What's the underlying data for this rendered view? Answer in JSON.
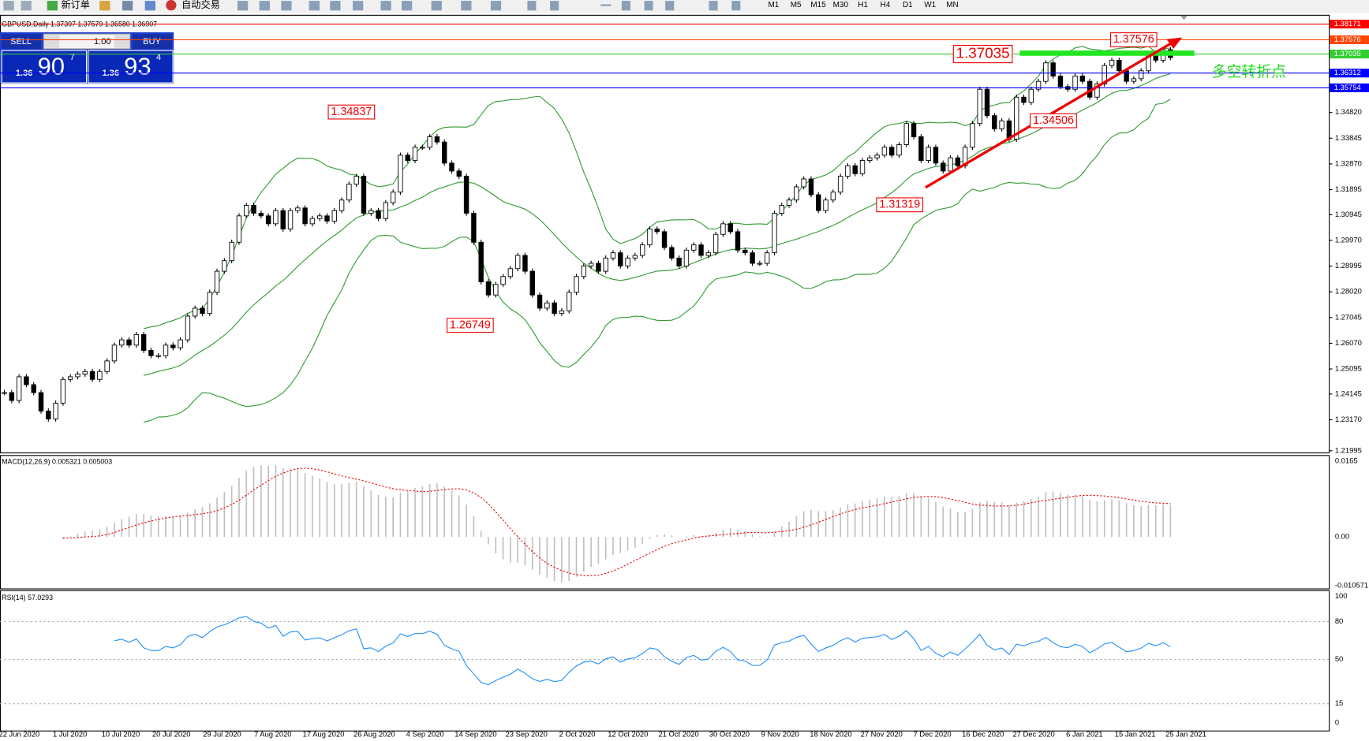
{
  "toolbar": {
    "new_order": "新订单",
    "auto_trading": "自动交易",
    "timeframes": [
      "M1",
      "M5",
      "M15",
      "M30",
      "H1",
      "H4",
      "D1",
      "W1",
      "MN"
    ]
  },
  "header": "GBPUSD,Daily 1.37397 1.37579 1.36580 1.36907",
  "trade_panel": {
    "sell": "SELL",
    "buy": "BUY",
    "lots": "1.00",
    "sell_price": {
      "prefix": "1.36",
      "big": "90",
      "sup": "7"
    },
    "buy_price": {
      "prefix": "1.36",
      "big": "93",
      "sup": "4"
    }
  },
  "price_axis": {
    "ticks": [
      "1.34820",
      "1.33845",
      "1.32870",
      "1.31895",
      "1.30945",
      "1.29970",
      "1.28995",
      "1.28020",
      "1.27045",
      "1.26070",
      "1.25095",
      "1.24145",
      "1.23170",
      "1.21995"
    ]
  },
  "levels": [
    {
      "label": "1.38171",
      "color": "#ff0000"
    },
    {
      "label": "1.37576",
      "color": "#ff4500"
    },
    {
      "label": "1.37035",
      "color": "#32cd32"
    },
    {
      "label": "1.36312",
      "color": "#0000ff"
    },
    {
      "label": "1.35754",
      "color": "#0000ff"
    }
  ],
  "annotations": [
    "1.34837",
    "1.26749",
    "1.31319",
    "1.34506",
    "1.37035",
    "1.37576"
  ],
  "note": "多空转折点",
  "candles": {
    "close": [
      1.242,
      1.239,
      1.248,
      1.245,
      1.242,
      1.235,
      1.232,
      1.238,
      1.247,
      1.248,
      1.249,
      1.25,
      1.247,
      1.25,
      1.254,
      1.26,
      1.262,
      1.26,
      1.264,
      1.258,
      1.256,
      1.256,
      1.26,
      1.259,
      1.262,
      1.271,
      1.274,
      1.272,
      1.28,
      1.288,
      1.292,
      1.299,
      1.309,
      1.313,
      1.31,
      1.309,
      1.306,
      1.311,
      1.304,
      1.311,
      1.312,
      1.306,
      1.308,
      1.309,
      1.307,
      1.311,
      1.315,
      1.321,
      1.324,
      1.31,
      1.311,
      1.308,
      1.314,
      1.318,
      1.332,
      1.33,
      1.335,
      1.335,
      1.339,
      1.337,
      1.329,
      1.326,
      1.324,
      1.31,
      1.299,
      1.284,
      1.279,
      1.283,
      1.286,
      1.289,
      1.294,
      1.288,
      1.279,
      1.274,
      1.276,
      1.272,
      1.273,
      1.28,
      1.286,
      1.29,
      1.291,
      1.288,
      1.293,
      1.295,
      1.29,
      1.293,
      1.294,
      1.298,
      1.304,
      1.303,
      1.297,
      1.293,
      1.29,
      1.296,
      1.298,
      1.294,
      1.295,
      1.302,
      1.306,
      1.303,
      1.296,
      1.295,
      1.291,
      1.291,
      1.295,
      1.31,
      1.313,
      1.315,
      1.32,
      1.323,
      1.317,
      1.311,
      1.315,
      1.318,
      1.324,
      1.328,
      1.325,
      1.33,
      1.331,
      1.332,
      1.335,
      1.332,
      1.336,
      1.344,
      1.339,
      1.33,
      1.335,
      1.329,
      1.326,
      1.331,
      1.328,
      1.335,
      1.344,
      1.357,
      1.347,
      1.342,
      1.345,
      1.338,
      1.354,
      1.352,
      1.357,
      1.36,
      1.367,
      1.362,
      1.358,
      1.357,
      1.362,
      1.36,
      1.354,
      1.359,
      1.366,
      1.368,
      1.364,
      1.36,
      1.361,
      1.364,
      1.37,
      1.368,
      1.372,
      1.369
    ]
  },
  "macd": {
    "label": "MACD(12,26,9) 0.005321 0.005003",
    "ticks": [
      "0.0165",
      "0.00",
      "-0.010571"
    ]
  },
  "rsi": {
    "label": "RSI(14) 57.0293",
    "ticks": [
      "100",
      "80",
      "50",
      "15",
      "0"
    ]
  },
  "dates": [
    "22 Jun 2020",
    "1 Jul 2020",
    "10 Jul 2020",
    "20 Jul 2020",
    "29 Jul 2020",
    "7 Aug 2020",
    "17 Aug 2020",
    "26 Aug 2020",
    "4 Sep 2020",
    "14 Sep 2020",
    "23 Sep 2020",
    "2 Oct 2020",
    "12 Oct 2020",
    "21 Oct 2020",
    "30 Oct 2020",
    "9 Nov 2020",
    "18 Nov 2020",
    "27 Nov 2020",
    "7 Dec 2020",
    "16 Dec 2020",
    "27 Dec 2020",
    "6 Jan 2021",
    "15 Jan 2021",
    "25 Jan 2021"
  ]
}
